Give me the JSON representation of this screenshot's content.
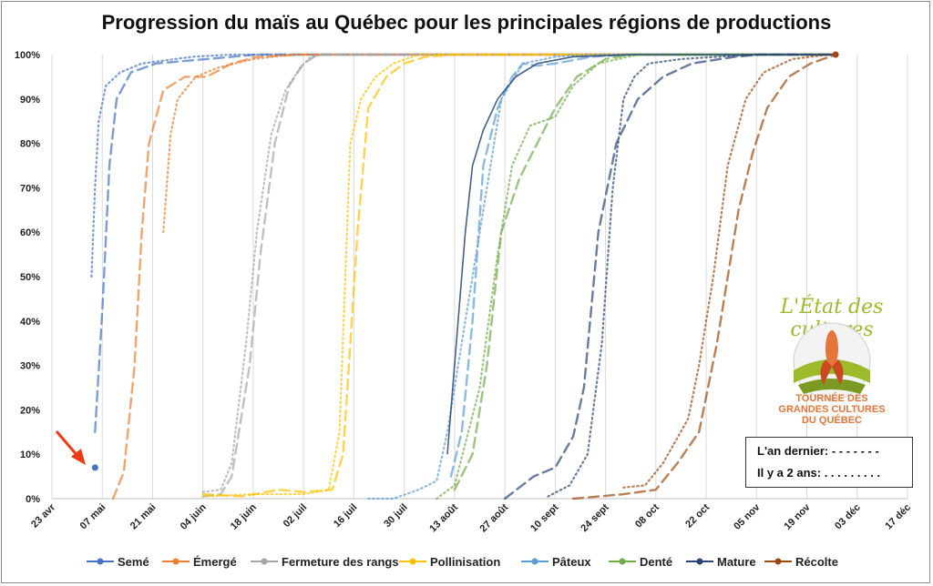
{
  "chart_data": {
    "type": "line",
    "title": "Progression du maïs au Québec pour les principales régions de productions",
    "xlabel": "",
    "ylabel": "",
    "ylim": [
      0,
      100
    ],
    "y_ticks": [
      "0%",
      "10%",
      "20%",
      "30%",
      "40%",
      "50%",
      "60%",
      "70%",
      "80%",
      "90%",
      "100%"
    ],
    "x_start": "2023-04-23",
    "x_end": "2023-12-17",
    "x_ticks": [
      {
        "date": "2023-04-23",
        "label": "23 avr"
      },
      {
        "date": "2023-05-07",
        "label": "07 mai"
      },
      {
        "date": "2023-05-21",
        "label": "21 mai"
      },
      {
        "date": "2023-06-04",
        "label": "04 juin"
      },
      {
        "date": "2023-06-18",
        "label": "18 juin"
      },
      {
        "date": "2023-07-02",
        "label": "02 juil"
      },
      {
        "date": "2023-07-16",
        "label": "16 juil"
      },
      {
        "date": "2023-07-30",
        "label": "30 juil"
      },
      {
        "date": "2023-08-13",
        "label": "13 août"
      },
      {
        "date": "2023-08-27",
        "label": "27 août"
      },
      {
        "date": "2023-09-10",
        "label": "10 sept"
      },
      {
        "date": "2023-09-24",
        "label": "24 sept"
      },
      {
        "date": "2023-10-08",
        "label": "08 oct"
      },
      {
        "date": "2023-10-22",
        "label": "22 oct"
      },
      {
        "date": "2023-11-05",
        "label": "05 nov"
      },
      {
        "date": "2023-11-19",
        "label": "19 nov"
      },
      {
        "date": "2023-12-03",
        "label": "03 déc"
      },
      {
        "date": "2023-12-17",
        "label": "17 déc"
      }
    ],
    "grid": "vertical",
    "legend_position": "bottom",
    "series": [
      {
        "name": "Semé",
        "color": "#4472c4",
        "current": [
          [
            "2023-05-05",
            7
          ]
        ],
        "last_year": [
          [
            "2023-05-05",
            15
          ],
          [
            "2023-05-07",
            42
          ],
          [
            "2023-05-09",
            75
          ],
          [
            "2023-05-11",
            90
          ],
          [
            "2023-05-15",
            96
          ],
          [
            "2023-05-22",
            98
          ],
          [
            "2023-06-05",
            99
          ],
          [
            "2023-06-19",
            100
          ],
          [
            "2023-11-27",
            100
          ]
        ],
        "two_years_ago": [
          [
            "2023-05-04",
            50
          ],
          [
            "2023-05-05",
            70
          ],
          [
            "2023-05-06",
            85
          ],
          [
            "2023-05-08",
            93
          ],
          [
            "2023-05-12",
            96
          ],
          [
            "2023-05-18",
            98
          ],
          [
            "2023-06-01",
            99.5
          ],
          [
            "2023-06-12",
            100
          ],
          [
            "2023-11-27",
            100
          ]
        ]
      },
      {
        "name": "Émergé",
        "color": "#ed7d31",
        "last_year": [
          [
            "2023-05-10",
            0
          ],
          [
            "2023-05-13",
            6
          ],
          [
            "2023-05-16",
            30
          ],
          [
            "2023-05-18",
            60
          ],
          [
            "2023-05-20",
            80
          ],
          [
            "2023-05-24",
            92
          ],
          [
            "2023-05-30",
            95
          ],
          [
            "2023-06-05",
            95
          ],
          [
            "2023-06-12",
            98
          ],
          [
            "2023-06-19",
            99.5
          ],
          [
            "2023-07-02",
            100
          ],
          [
            "2023-11-27",
            100
          ]
        ],
        "two_years_ago": [
          [
            "2023-05-24",
            60
          ],
          [
            "2023-05-26",
            82
          ],
          [
            "2023-05-28",
            90
          ],
          [
            "2023-06-02",
            95
          ],
          [
            "2023-06-08",
            97
          ],
          [
            "2023-06-18",
            99
          ],
          [
            "2023-06-29",
            100
          ],
          [
            "2023-11-27",
            100
          ]
        ]
      },
      {
        "name": "Fermeture des rangs",
        "color": "#a5a5a5",
        "last_year": [
          [
            "2023-06-04",
            0.5
          ],
          [
            "2023-06-09",
            1
          ],
          [
            "2023-06-12",
            5
          ],
          [
            "2023-06-17",
            30
          ],
          [
            "2023-06-20",
            55
          ],
          [
            "2023-06-24",
            80
          ],
          [
            "2023-06-28",
            93
          ],
          [
            "2023-07-02",
            98
          ],
          [
            "2023-07-06",
            100
          ],
          [
            "2023-11-27",
            100
          ]
        ],
        "two_years_ago": [
          [
            "2023-06-04",
            1.5
          ],
          [
            "2023-06-09",
            2
          ],
          [
            "2023-06-12",
            8
          ],
          [
            "2023-06-16",
            35
          ],
          [
            "2023-06-19",
            60
          ],
          [
            "2023-06-23",
            82
          ],
          [
            "2023-06-27",
            92
          ],
          [
            "2023-07-01",
            97
          ],
          [
            "2023-07-04",
            99.5
          ],
          [
            "2023-07-08",
            100
          ],
          [
            "2023-11-27",
            100
          ]
        ]
      },
      {
        "name": "Pollinisation",
        "color": "#ffc000",
        "last_year": [
          [
            "2023-06-04",
            1
          ],
          [
            "2023-06-15",
            0.5
          ],
          [
            "2023-06-25",
            2
          ],
          [
            "2023-07-02",
            1.5
          ],
          [
            "2023-07-10",
            2
          ],
          [
            "2023-07-13",
            10
          ],
          [
            "2023-07-17",
            60
          ],
          [
            "2023-07-20",
            88
          ],
          [
            "2023-07-25",
            95
          ],
          [
            "2023-07-30",
            98
          ],
          [
            "2023-08-05",
            99.5
          ],
          [
            "2023-08-13",
            100
          ],
          [
            "2023-11-27",
            100
          ]
        ],
        "two_years_ago": [
          [
            "2023-06-04",
            0.5
          ],
          [
            "2023-06-18",
            1
          ],
          [
            "2023-07-02",
            1
          ],
          [
            "2023-07-09",
            2
          ],
          [
            "2023-07-12",
            15
          ],
          [
            "2023-07-15",
            80
          ],
          [
            "2023-07-18",
            90
          ],
          [
            "2023-07-22",
            95
          ],
          [
            "2023-07-27",
            98
          ],
          [
            "2023-08-03",
            100
          ],
          [
            "2023-11-27",
            100
          ]
        ]
      },
      {
        "name": "Pâteux",
        "color": "#5b9bd5",
        "last_year": [
          [
            "2023-08-12",
            5
          ],
          [
            "2023-08-15",
            15
          ],
          [
            "2023-08-18",
            40
          ],
          [
            "2023-08-21",
            75
          ],
          [
            "2023-08-25",
            88
          ],
          [
            "2023-08-29",
            95
          ],
          [
            "2023-09-01",
            98
          ],
          [
            "2023-09-05",
            97.5
          ],
          [
            "2023-09-10",
            98
          ],
          [
            "2023-09-20",
            99.5
          ],
          [
            "2023-10-01",
            100
          ],
          [
            "2023-11-27",
            100
          ]
        ],
        "two_years_ago": [
          [
            "2023-07-20",
            0
          ],
          [
            "2023-07-27",
            0
          ],
          [
            "2023-08-03",
            2
          ],
          [
            "2023-08-08",
            4
          ],
          [
            "2023-08-11",
            15
          ],
          [
            "2023-08-14",
            30
          ],
          [
            "2023-08-20",
            60
          ],
          [
            "2023-08-26",
            90
          ],
          [
            "2023-09-01",
            98
          ],
          [
            "2023-09-10",
            99.5
          ],
          [
            "2023-09-20",
            100
          ],
          [
            "2023-11-27",
            100
          ]
        ]
      },
      {
        "name": "Denté",
        "color": "#70ad47",
        "last_year": [
          [
            "2023-08-13",
            2
          ],
          [
            "2023-08-18",
            10
          ],
          [
            "2023-08-22",
            30
          ],
          [
            "2023-08-26",
            60
          ],
          [
            "2023-08-31",
            72
          ],
          [
            "2023-09-05",
            80
          ],
          [
            "2023-09-10",
            88
          ],
          [
            "2023-09-16",
            95
          ],
          [
            "2023-09-24",
            99
          ],
          [
            "2023-10-01",
            100
          ],
          [
            "2023-11-27",
            100
          ]
        ],
        "two_years_ago": [
          [
            "2023-08-08",
            0
          ],
          [
            "2023-08-13",
            3
          ],
          [
            "2023-08-20",
            25
          ],
          [
            "2023-08-25",
            55
          ],
          [
            "2023-08-29",
            75
          ],
          [
            "2023-09-03",
            84
          ],
          [
            "2023-09-10",
            86
          ],
          [
            "2023-09-15",
            93
          ],
          [
            "2023-09-22",
            98
          ],
          [
            "2023-10-03",
            100
          ],
          [
            "2023-11-27",
            100
          ]
        ]
      },
      {
        "name": "Mature",
        "color": "#264478",
        "current": [
          [
            "2023-08-11",
            10
          ],
          [
            "2023-08-14",
            40
          ],
          [
            "2023-08-16",
            60
          ],
          [
            "2023-08-18",
            75
          ],
          [
            "2023-08-21",
            83
          ],
          [
            "2023-08-25",
            90
          ],
          [
            "2023-08-30",
            95
          ],
          [
            "2023-09-05",
            98
          ],
          [
            "2023-09-15",
            99.5
          ],
          [
            "2023-10-01",
            100
          ],
          [
            "2023-11-27",
            100
          ]
        ],
        "last_year": [
          [
            "2023-08-27",
            0
          ],
          [
            "2023-09-04",
            5
          ],
          [
            "2023-09-10",
            7
          ],
          [
            "2023-09-15",
            14
          ],
          [
            "2023-09-18",
            25
          ],
          [
            "2023-09-22",
            60
          ],
          [
            "2023-09-27",
            80
          ],
          [
            "2023-10-03",
            90
          ],
          [
            "2023-10-10",
            95
          ],
          [
            "2023-10-18",
            98
          ],
          [
            "2023-10-30",
            99.5
          ],
          [
            "2023-11-06",
            100
          ],
          [
            "2023-11-27",
            100
          ]
        ],
        "two_years_ago": [
          [
            "2023-09-08",
            0.5
          ],
          [
            "2023-09-14",
            3
          ],
          [
            "2023-09-19",
            10
          ],
          [
            "2023-09-23",
            35
          ],
          [
            "2023-09-26",
            70
          ],
          [
            "2023-09-29",
            90
          ],
          [
            "2023-10-02",
            95
          ],
          [
            "2023-10-06",
            98
          ],
          [
            "2023-10-15",
            99
          ],
          [
            "2023-10-25",
            99.5
          ],
          [
            "2023-11-05",
            100
          ],
          [
            "2023-11-27",
            100
          ]
        ]
      },
      {
        "name": "Récolte",
        "color": "#9e480e",
        "current": [
          [
            "2023-11-27",
            100
          ]
        ],
        "last_year": [
          [
            "2023-09-15",
            0
          ],
          [
            "2023-09-22",
            0.5
          ],
          [
            "2023-09-29",
            1
          ],
          [
            "2023-10-08",
            2
          ],
          [
            "2023-10-14",
            8
          ],
          [
            "2023-10-20",
            15
          ],
          [
            "2023-10-25",
            35
          ],
          [
            "2023-10-31",
            65
          ],
          [
            "2023-11-04",
            78
          ],
          [
            "2023-11-08",
            88
          ],
          [
            "2023-11-14",
            95
          ],
          [
            "2023-11-20",
            98
          ],
          [
            "2023-11-27",
            100
          ]
        ],
        "two_years_ago": [
          [
            "2023-09-29",
            2.5
          ],
          [
            "2023-10-05",
            3
          ],
          [
            "2023-10-10",
            8
          ],
          [
            "2023-10-17",
            18
          ],
          [
            "2023-10-20",
            30
          ],
          [
            "2023-10-24",
            50
          ],
          [
            "2023-10-28",
            75
          ],
          [
            "2023-11-02",
            90
          ],
          [
            "2023-11-07",
            96
          ],
          [
            "2023-11-15",
            99
          ],
          [
            "2023-11-25",
            100
          ]
        ]
      }
    ]
  },
  "logo": {
    "name": "L'État des cultures",
    "subtitle_lines": [
      "TOURNÉE DES",
      "GRANDES CULTURES",
      "DU QUÉBEC"
    ]
  },
  "key_box": {
    "last_year": "L'an dernier: - - - - - - -",
    "two_years_ago": "Il y a 2 ans: . . . . . . . . ."
  },
  "colors": {
    "arrow": "#f03a17",
    "frame": "#8a8a8a",
    "grid": "#d9d9d9"
  }
}
